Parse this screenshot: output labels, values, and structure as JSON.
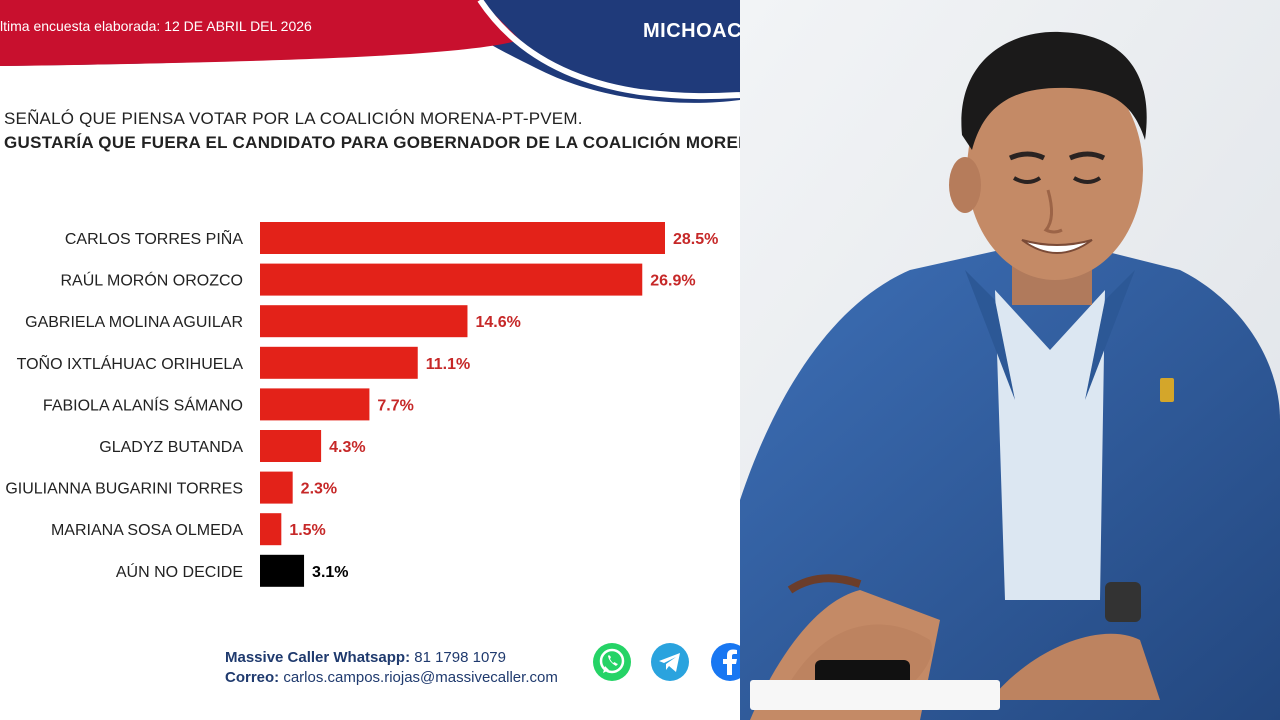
{
  "header": {
    "date_line": "ltima encuesta elaborada: 12 DE ABRIL DEL 2026",
    "region": "MICHOAC",
    "question_1": "SEÑALÓ QUE PIENSA VOTAR POR LA COALICIÓN MORENA-PT-PVEM.",
    "question_2": "GUSTARÍA QUE FUERA EL CANDIDATO PARA GOBERNADOR DE LA COALICIÓN MORENA-PT"
  },
  "chart_data": {
    "type": "bar",
    "orientation": "horizontal",
    "categories": [
      "CARLOS TORRES PIÑA",
      "RAÚL MORÓN OROZCO",
      "GABRIELA MOLINA AGUILAR",
      "TOÑO IXTLÁHUAC ORIHUELA",
      "FABIOLA ALANÍS SÁMANO",
      "GLADYZ BUTANDA",
      "GIULIANNA BUGARINI TORRES",
      "MARIANA SOSA OLMEDA",
      "AÚN NO DECIDE"
    ],
    "values": [
      28.5,
      26.9,
      14.6,
      11.1,
      7.7,
      4.3,
      2.3,
      1.5,
      3.1
    ],
    "value_labels": [
      "28.5%",
      "26.9%",
      "14.6%",
      "11.1%",
      "7.7%",
      "4.3%",
      "2.3%",
      "1.5%",
      "3.1%"
    ],
    "bar_colors": [
      "#e32219",
      "#e32219",
      "#e32219",
      "#e32219",
      "#e32219",
      "#e32219",
      "#e32219",
      "#e32219",
      "#000000"
    ],
    "label_colors": [
      "#c62828",
      "#c62828",
      "#c62828",
      "#c62828",
      "#c62828",
      "#c62828",
      "#c62828",
      "#c62828",
      "#000000"
    ],
    "grid": false,
    "legend": "none"
  },
  "footer": {
    "whatsapp_label": "Massive Caller Whatsapp:",
    "whatsapp_number": "81 1798 1079",
    "email_label": "Correo:",
    "email": "carlos.campos.riojas@massivecaller.com"
  },
  "icons": [
    "whatsapp-icon",
    "telegram-icon",
    "facebook-icon"
  ],
  "colors": {
    "brand_red": "#c8102e",
    "brand_blue": "#1f3a7a",
    "bar_red": "#e32219"
  }
}
